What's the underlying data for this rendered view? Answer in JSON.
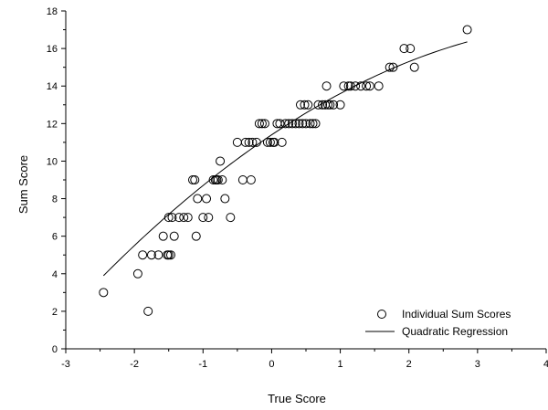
{
  "chart_data": {
    "type": "scatter",
    "title": "",
    "xlabel": "True Score",
    "ylabel": "Sum Score",
    "xlim": [
      -3,
      4
    ],
    "ylim": [
      0,
      18
    ],
    "xticks": [
      -3,
      -2,
      -1,
      0,
      1,
      2,
      3,
      4
    ],
    "yticks": [
      0,
      2,
      4,
      6,
      8,
      10,
      12,
      14,
      16,
      18
    ],
    "grid": false,
    "legend_position": "bottom-right",
    "series": [
      {
        "name": "Individual Sum Scores",
        "kind": "scatter",
        "marker": "open-circle",
        "points": [
          [
            -2.45,
            3
          ],
          [
            -1.95,
            4
          ],
          [
            -1.88,
            5
          ],
          [
            -1.8,
            2
          ],
          [
            -1.75,
            5
          ],
          [
            -1.65,
            5
          ],
          [
            -1.58,
            6
          ],
          [
            -1.52,
            5
          ],
          [
            -1.5,
            5
          ],
          [
            -1.47,
            5
          ],
          [
            -1.5,
            7
          ],
          [
            -1.45,
            7
          ],
          [
            -1.42,
            6
          ],
          [
            -1.35,
            7
          ],
          [
            -1.28,
            7
          ],
          [
            -1.22,
            7
          ],
          [
            -1.15,
            9
          ],
          [
            -1.12,
            9
          ],
          [
            -1.1,
            6
          ],
          [
            -1.08,
            8
          ],
          [
            -1.0,
            7
          ],
          [
            -0.95,
            8
          ],
          [
            -0.92,
            7
          ],
          [
            -0.85,
            9
          ],
          [
            -0.82,
            9
          ],
          [
            -0.8,
            9
          ],
          [
            -0.78,
            9
          ],
          [
            -0.75,
            10
          ],
          [
            -0.72,
            9
          ],
          [
            -0.68,
            8
          ],
          [
            -0.6,
            7
          ],
          [
            -0.5,
            11
          ],
          [
            -0.42,
            9
          ],
          [
            -0.38,
            11
          ],
          [
            -0.33,
            11
          ],
          [
            -0.3,
            9
          ],
          [
            -0.28,
            11
          ],
          [
            -0.22,
            11
          ],
          [
            -0.18,
            12
          ],
          [
            -0.14,
            12
          ],
          [
            -0.1,
            12
          ],
          [
            -0.06,
            11
          ],
          [
            -0.02,
            11
          ],
          [
            0.02,
            11
          ],
          [
            0.04,
            11
          ],
          [
            0.08,
            12
          ],
          [
            0.12,
            12
          ],
          [
            0.15,
            11
          ],
          [
            0.2,
            12
          ],
          [
            0.25,
            12
          ],
          [
            0.3,
            12
          ],
          [
            0.35,
            12
          ],
          [
            0.4,
            12
          ],
          [
            0.42,
            13
          ],
          [
            0.45,
            12
          ],
          [
            0.48,
            13
          ],
          [
            0.5,
            12
          ],
          [
            0.53,
            13
          ],
          [
            0.56,
            12
          ],
          [
            0.6,
            12
          ],
          [
            0.64,
            12
          ],
          [
            0.68,
            13
          ],
          [
            0.74,
            13
          ],
          [
            0.78,
            13
          ],
          [
            0.8,
            14
          ],
          [
            0.82,
            13
          ],
          [
            0.85,
            13
          ],
          [
            0.9,
            13
          ],
          [
            1.0,
            13
          ],
          [
            1.05,
            14
          ],
          [
            1.12,
            14
          ],
          [
            1.15,
            14
          ],
          [
            1.22,
            14
          ],
          [
            1.3,
            14
          ],
          [
            1.38,
            14
          ],
          [
            1.43,
            14
          ],
          [
            1.56,
            14
          ],
          [
            1.72,
            15
          ],
          [
            1.77,
            15
          ],
          [
            1.93,
            16
          ],
          [
            2.02,
            16
          ],
          [
            2.08,
            15
          ],
          [
            2.85,
            17
          ]
        ]
      },
      {
        "name": "Quadratic Regression",
        "kind": "line",
        "equation": "y = 11.4 + 2.45x - 0.25x^2",
        "x_range": [
          -2.45,
          2.85
        ],
        "coefficients": {
          "a": 11.4,
          "b": 2.45,
          "c": -0.25
        }
      }
    ]
  }
}
